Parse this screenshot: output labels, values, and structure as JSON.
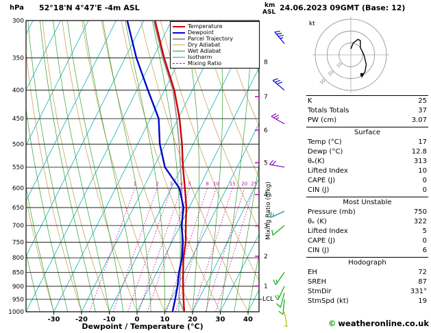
{
  "header": {
    "pressure_unit": "hPa",
    "station": "52°18'N 4°47'E  -4m ASL",
    "km": "km",
    "asl": "ASL",
    "datetime": "24.06.2023 09GMT (Base: 12)"
  },
  "axes": {
    "x_label": "Dewpoint / Temperature (°C)",
    "mixing_label": "Mixing Ratio (g/kg)",
    "lcl_label": "LCL"
  },
  "legend": {
    "items": [
      {
        "label": "Temperature",
        "color": "#cc0000",
        "style": "solid",
        "thick": true
      },
      {
        "label": "Dewpoint",
        "color": "#0000cc",
        "style": "solid",
        "thick": true
      },
      {
        "label": "Parcel Trajectory",
        "color": "#999999",
        "style": "solid",
        "thick": true
      },
      {
        "label": "Dry Adiabat",
        "color": "#c8a45a",
        "style": "solid",
        "thick": false
      },
      {
        "label": "Wet Adiabat",
        "color": "#2ca02c",
        "style": "solid",
        "thick": false
      },
      {
        "label": "Isotherm",
        "color": "#00b2b2",
        "style": "solid",
        "thick": false
      },
      {
        "label": "Mixing Ratio",
        "color": "#cc00aa",
        "style": "dashed",
        "thick": false
      }
    ]
  },
  "chart_data": {
    "type": "skewt-logp",
    "pressure_range": [
      300,
      1000
    ],
    "temp_range_at_surface": [
      -40,
      44
    ],
    "pressure_ticks": [
      300,
      350,
      400,
      450,
      500,
      550,
      600,
      650,
      700,
      750,
      800,
      850,
      900,
      950,
      1000
    ],
    "temp_ticks": [
      -30,
      -20,
      -10,
      0,
      10,
      20,
      30,
      40
    ],
    "isotherms": {
      "min": -120,
      "max": 40,
      "step": 10
    },
    "dry_adiabats": {
      "min": -40,
      "max": 100,
      "step": 10
    },
    "wet_adiabats": {
      "min": -40,
      "max": 45,
      "step": 5
    },
    "mixing_ratio_lines": [
      1,
      2,
      3,
      4,
      5,
      8,
      10,
      15,
      20,
      25
    ],
    "km_levels": [
      {
        "km": 8,
        "p": 356
      },
      {
        "km": 7,
        "p": 411
      },
      {
        "km": 6,
        "p": 472
      },
      {
        "km": 5,
        "p": 540
      },
      {
        "km": 4,
        "p": 616
      },
      {
        "km": 3,
        "p": 701
      },
      {
        "km": 2,
        "p": 795
      },
      {
        "km": 1,
        "p": 899
      }
    ],
    "lcl_pressure": 950,
    "temperature_profile": {
      "pressure": [
        1000,
        950,
        900,
        850,
        800,
        750,
        700,
        650,
        600,
        550,
        500,
        450,
        400,
        350,
        300
      ],
      "temp": [
        17,
        14.5,
        12,
        9.5,
        7,
        5,
        2,
        -1,
        -5,
        -9.5,
        -14,
        -19.5,
        -26.5,
        -36,
        -46
      ]
    },
    "dewpoint_profile": {
      "pressure": [
        1000,
        950,
        900,
        850,
        800,
        750,
        700,
        650,
        600,
        550,
        500,
        450,
        400,
        350,
        300
      ],
      "temp": [
        12.8,
        11.5,
        10,
        8,
        6.5,
        4,
        0.5,
        -2,
        -7,
        -16,
        -22,
        -27,
        -36,
        -46,
        -56
      ]
    },
    "parcel_profile": {
      "pressure": [
        1000,
        950,
        900,
        850,
        800,
        750,
        700,
        650,
        600,
        550,
        500,
        450,
        400,
        350,
        300
      ],
      "temp": [
        17,
        12.8,
        10.8,
        8.6,
        6.2,
        3.6,
        0.8,
        -2.5,
        -6.2,
        -10.4,
        -15,
        -20.5,
        -27,
        -36.5,
        -46.5
      ]
    },
    "wind_barbs": [
      {
        "p": 1000,
        "dir": 170,
        "spd": 5,
        "color": "#b9b900"
      },
      {
        "p": 950,
        "dir": 185,
        "spd": 10,
        "color": "#00a800"
      },
      {
        "p": 925,
        "dir": 195,
        "spd": 10,
        "color": "#00a800"
      },
      {
        "p": 900,
        "dir": 205,
        "spd": 15,
        "color": "#00a800"
      },
      {
        "p": 850,
        "dir": 215,
        "spd": 15,
        "color": "#00a800"
      },
      {
        "p": 700,
        "dir": 230,
        "spd": 10,
        "color": "#00a800"
      },
      {
        "p": 660,
        "dir": 245,
        "spd": 15,
        "color": "#008888"
      },
      {
        "p": 550,
        "dir": 280,
        "spd": 20,
        "color": "#8800bb"
      },
      {
        "p": 460,
        "dir": 300,
        "spd": 25,
        "color": "#8800bb"
      },
      {
        "p": 400,
        "dir": 310,
        "spd": 30,
        "color": "#0000cc"
      },
      {
        "p": 330,
        "dir": 320,
        "spd": 35,
        "color": "#0000cc"
      }
    ],
    "colors": {
      "temperature": "#cc0000",
      "dewpoint": "#0000cc",
      "parcel": "#999999",
      "dry_adiabat": "#c8a45a",
      "wet_adiabat": "#2ca02c",
      "isotherm": "#00b2b2",
      "mixing_ratio": "#cc00aa",
      "isobar": "#000000"
    }
  },
  "hodograph": {
    "unit": "kt",
    "rings": [
      10,
      20,
      30
    ],
    "trace_u": [
      0,
      2,
      6,
      8,
      8,
      11,
      13,
      12,
      9
    ],
    "trace_v": [
      5,
      10,
      13,
      12,
      6,
      0,
      -8,
      -14,
      -19
    ],
    "storm": {
      "u": 9.2,
      "v": -16.6
    }
  },
  "stats": [
    {
      "header": "",
      "rows": [
        [
          "K",
          "25"
        ],
        [
          "Totals Totals",
          "37"
        ],
        [
          "PW (cm)",
          "3.07"
        ]
      ]
    },
    {
      "header": "Surface",
      "rows": [
        [
          "Temp (°C)",
          "17"
        ],
        [
          "Dewp (°C)",
          "12.8"
        ],
        [
          "θₑ(K)",
          "313"
        ],
        [
          "Lifted Index",
          "10"
        ],
        [
          "CAPE (J)",
          "0"
        ],
        [
          "CIN (J)",
          "0"
        ]
      ]
    },
    {
      "header": "Most Unstable",
      "rows": [
        [
          "Pressure (mb)",
          "750"
        ],
        [
          "θₑ (K)",
          "322"
        ],
        [
          "Lifted Index",
          "5"
        ],
        [
          "CAPE (J)",
          "0"
        ],
        [
          "CIN (J)",
          "6"
        ]
      ]
    },
    {
      "header": "Hodograph",
      "rows": [
        [
          "EH",
          "72"
        ],
        [
          "SREH",
          "87"
        ],
        [
          "StmDir",
          "331°"
        ],
        [
          "StmSpd (kt)",
          "19"
        ]
      ]
    }
  ],
  "footer": {
    "symbol": "©",
    "text": "weatheronline.co.uk"
  }
}
